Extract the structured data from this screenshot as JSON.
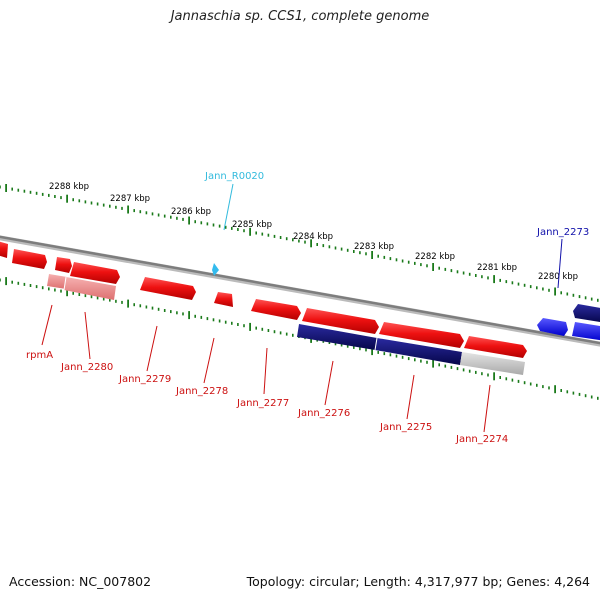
{
  "title": "Jannaschia sp. CCS1, complete genome",
  "footer": {
    "accession": "Accession: NC_007802",
    "summary": "Topology: circular; Length: 4,317,977 bp; Genes: 4,264"
  },
  "colors": {
    "gene_forward_strand": "#ee1111",
    "gene_reverse_strand": "#1a1aee",
    "cds_forward_strand": "#ee8888",
    "cds_reverse_strand": "#0a0a7a",
    "rna_label": "#33bbdd",
    "ticks": "#1a7a1a",
    "backbone": "#888888",
    "label_forward": "#cc1111",
    "label_reverse": "#1111aa"
  },
  "scale_labels": [
    "2288 kbp",
    "2287 kbp",
    "2286 kbp",
    "2285 kbp",
    "2284 kbp",
    "2283 kbp",
    "2282 kbp",
    "2281 kbp",
    "2280 kbp"
  ],
  "gene_labels": [
    {
      "text": "Jann_R0020",
      "type": "rna"
    },
    {
      "text": "Jann_2273",
      "type": "reverse"
    },
    {
      "text": "rpmA",
      "type": "forward"
    },
    {
      "text": "Jann_2280",
      "type": "forward"
    },
    {
      "text": "Jann_2279",
      "type": "forward"
    },
    {
      "text": "Jann_2278",
      "type": "forward"
    },
    {
      "text": "Jann_2277",
      "type": "forward"
    },
    {
      "text": "Jann_2276",
      "type": "forward"
    },
    {
      "text": "Jann_2275",
      "type": "forward"
    },
    {
      "text": "Jann_2274",
      "type": "forward"
    }
  ]
}
